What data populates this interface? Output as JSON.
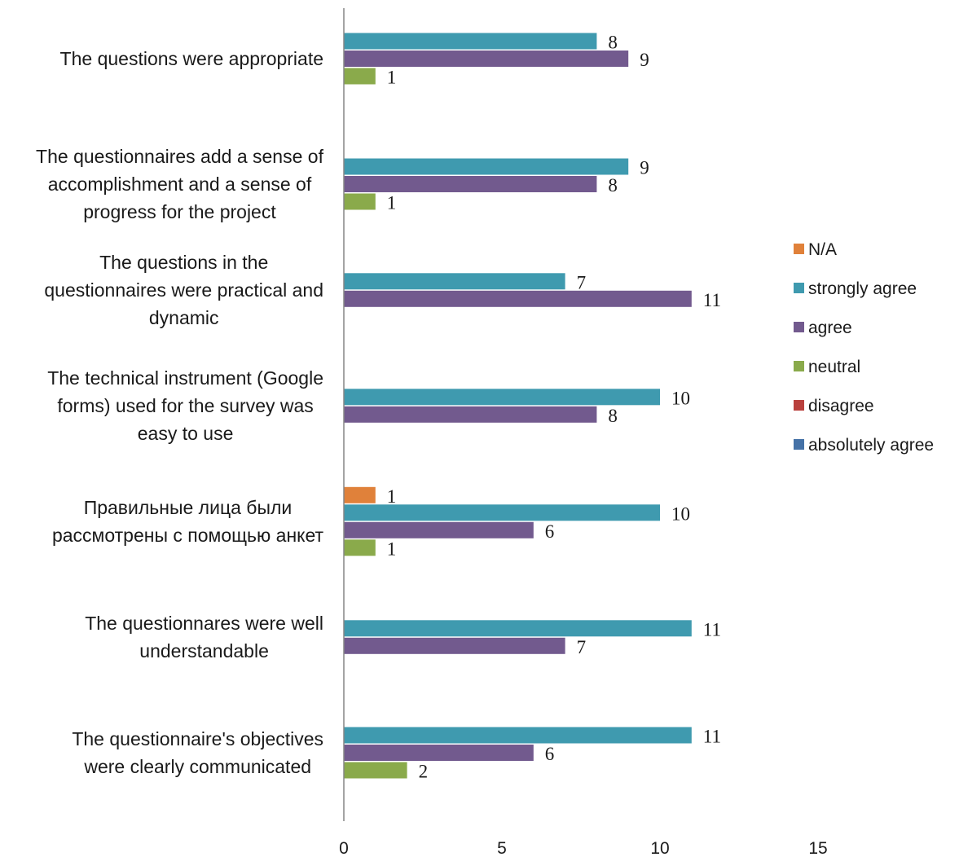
{
  "chart_data": {
    "type": "bar",
    "orientation": "horizontal",
    "categories": [
      [
        "The questions were appropriate"
      ],
      [
        "The questionnaires add a sense of",
        "accomplishment and a sense of",
        "progress for the project"
      ],
      [
        "The questions in the",
        "questionnaires were practical and",
        "dynamic"
      ],
      [
        "The technical instrument (Google",
        "forms) used for the survey was",
        "easy to use"
      ],
      [
        "Правильные лица были",
        "рассмотрены с помощью анкет"
      ],
      [
        "The questionnares were well",
        "understandable"
      ],
      [
        "The questionnaire's objectives",
        "were clearly communicated"
      ]
    ],
    "series": [
      {
        "name": "N/A",
        "color": "#E0813A",
        "values": [
          0,
          0,
          0,
          0,
          1,
          0,
          0
        ]
      },
      {
        "name": "strongly agree",
        "color": "#3F9AAF",
        "values": [
          8,
          9,
          7,
          10,
          10,
          11,
          11
        ]
      },
      {
        "name": "agree",
        "color": "#725A8E",
        "values": [
          9,
          8,
          11,
          8,
          6,
          7,
          6
        ]
      },
      {
        "name": "neutral",
        "color": "#8AAA4B",
        "values": [
          1,
          1,
          0,
          0,
          1,
          0,
          2
        ]
      },
      {
        "name": "disagree",
        "color": "#B9403D",
        "values": [
          0,
          0,
          0,
          0,
          0,
          0,
          0
        ]
      },
      {
        "name": "absolutely agree",
        "color": "#4572A7",
        "values": [
          0,
          0,
          0,
          0,
          0,
          0,
          0
        ]
      }
    ],
    "xlim": [
      0,
      15
    ],
    "xticks": [
      "0",
      "5",
      "10",
      "15"
    ],
    "grid": false,
    "legend_position": "right",
    "title": "",
    "xlabel": "",
    "ylabel": ""
  }
}
